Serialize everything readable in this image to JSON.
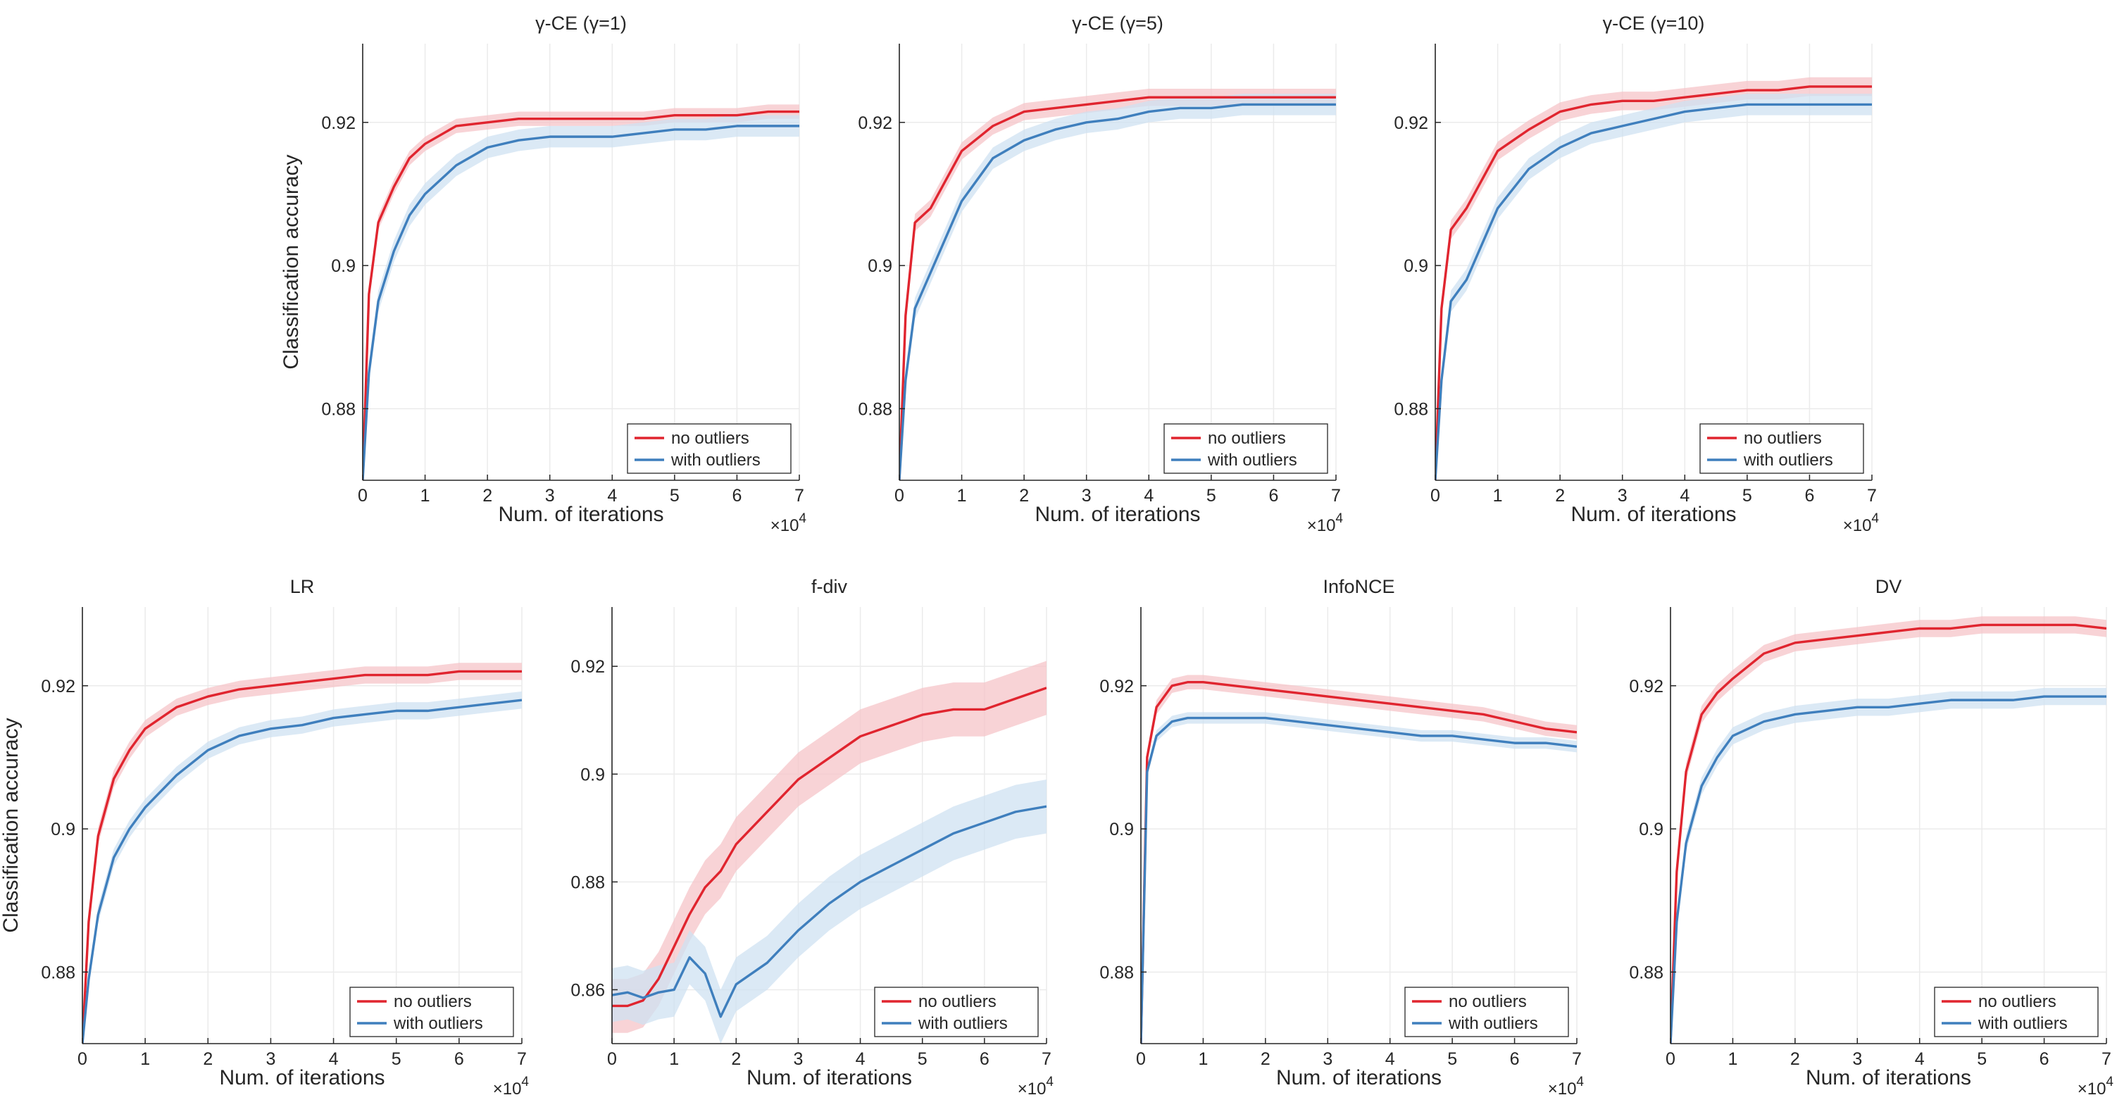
{
  "colors": {
    "no_outliers": "#e0252f",
    "with_outliers": "#3f7fbd",
    "no_outliers_band": "#f6c4c8",
    "with_outliers_band": "#cfe1f1",
    "grid": "#ebebeb",
    "axis": "#262626"
  },
  "common": {
    "xlabel": "Num. of iterations",
    "ylabel": "Classification accuracy",
    "x_exponent_base": "×10",
    "x_exponent_power": "4",
    "xlim": [
      0,
      7
    ],
    "ylim": [
      0.87,
      0.931
    ],
    "xticks": [
      "0",
      "1",
      "2",
      "3",
      "4",
      "5",
      "6",
      "7"
    ],
    "yticks": [
      {
        "value": 0.88,
        "label": "0.88"
      },
      {
        "value": 0.9,
        "label": "0.9"
      },
      {
        "value": 0.92,
        "label": "0.92"
      }
    ],
    "legend": [
      "no outliers",
      "with outliers"
    ],
    "legend_position": "bottom-right"
  },
  "chart_data": [
    {
      "type": "line",
      "title": "γ-CE (γ=1)",
      "show_ylabel": true,
      "xlim": [
        0,
        7
      ],
      "ylim": [
        0.87,
        0.931
      ],
      "series": [
        {
          "name": "no outliers",
          "x": [
            0,
            0.1,
            0.25,
            0.5,
            0.75,
            1,
            1.5,
            2,
            2.5,
            3,
            3.5,
            4,
            4.5,
            5,
            5.5,
            6,
            6.5,
            7
          ],
          "y": [
            0.87,
            0.896,
            0.906,
            0.911,
            0.915,
            0.917,
            0.9195,
            0.92,
            0.9205,
            0.9205,
            0.9205,
            0.9205,
            0.9205,
            0.921,
            0.921,
            0.921,
            0.9215,
            0.9215
          ],
          "band": 0.001
        },
        {
          "name": "with outliers",
          "x": [
            0,
            0.1,
            0.25,
            0.5,
            0.75,
            1,
            1.5,
            2,
            2.5,
            3,
            3.5,
            4,
            4.5,
            5,
            5.5,
            6,
            6.5,
            7
          ],
          "y": [
            0.87,
            0.885,
            0.895,
            0.902,
            0.907,
            0.91,
            0.914,
            0.9165,
            0.9175,
            0.918,
            0.918,
            0.918,
            0.9185,
            0.919,
            0.919,
            0.9195,
            0.9195,
            0.9195
          ],
          "band": 0.0015
        }
      ]
    },
    {
      "type": "line",
      "title": "γ-CE (γ=5)",
      "show_ylabel": false,
      "xlim": [
        0,
        7
      ],
      "ylim": [
        0.87,
        0.931
      ],
      "series": [
        {
          "name": "no outliers",
          "x": [
            0,
            0.1,
            0.25,
            0.5,
            0.75,
            1,
            1.5,
            2,
            2.5,
            3,
            3.5,
            4,
            4.5,
            5,
            5.5,
            6,
            6.5,
            7
          ],
          "y": [
            0.87,
            0.893,
            0.906,
            0.908,
            0.912,
            0.916,
            0.9195,
            0.9215,
            0.922,
            0.9225,
            0.923,
            0.9235,
            0.9235,
            0.9235,
            0.9235,
            0.9235,
            0.9235,
            0.9235
          ],
          "band": 0.0012
        },
        {
          "name": "with outliers",
          "x": [
            0,
            0.1,
            0.25,
            0.5,
            0.75,
            1,
            1.5,
            2,
            2.5,
            3,
            3.5,
            4,
            4.5,
            5,
            5.5,
            6,
            6.5,
            7
          ],
          "y": [
            0.87,
            0.884,
            0.894,
            0.899,
            0.904,
            0.909,
            0.915,
            0.9175,
            0.919,
            0.92,
            0.9205,
            0.9215,
            0.922,
            0.922,
            0.9225,
            0.9225,
            0.9225,
            0.9225
          ],
          "band": 0.0015
        }
      ]
    },
    {
      "type": "line",
      "title": "γ-CE (γ=10)",
      "show_ylabel": false,
      "xlim": [
        0,
        7
      ],
      "ylim": [
        0.87,
        0.931
      ],
      "series": [
        {
          "name": "no outliers",
          "x": [
            0,
            0.1,
            0.25,
            0.5,
            0.75,
            1,
            1.5,
            2,
            2.5,
            3,
            3.5,
            4,
            4.5,
            5,
            5.5,
            6,
            6.5,
            7
          ],
          "y": [
            0.87,
            0.894,
            0.905,
            0.908,
            0.912,
            0.916,
            0.919,
            0.9215,
            0.9225,
            0.923,
            0.923,
            0.9235,
            0.924,
            0.9245,
            0.9245,
            0.925,
            0.925,
            0.925
          ],
          "band": 0.0013
        },
        {
          "name": "with outliers",
          "x": [
            0,
            0.1,
            0.25,
            0.5,
            0.75,
            1,
            1.5,
            2,
            2.5,
            3,
            3.5,
            4,
            4.5,
            5,
            5.5,
            6,
            6.5,
            7
          ],
          "y": [
            0.87,
            0.884,
            0.895,
            0.898,
            0.903,
            0.908,
            0.9135,
            0.9165,
            0.9185,
            0.9195,
            0.9205,
            0.9215,
            0.922,
            0.9225,
            0.9225,
            0.9225,
            0.9225,
            0.9225
          ],
          "band": 0.0015
        }
      ]
    },
    {
      "type": "line",
      "title": "LR",
      "show_ylabel": true,
      "xlim": [
        0,
        7
      ],
      "ylim": [
        0.87,
        0.931
      ],
      "series": [
        {
          "name": "no outliers",
          "x": [
            0,
            0.1,
            0.25,
            0.5,
            0.75,
            1,
            1.5,
            2,
            2.5,
            3,
            3.5,
            4,
            4.5,
            5,
            5.5,
            6,
            6.5,
            7
          ],
          "y": [
            0.87,
            0.887,
            0.899,
            0.907,
            0.911,
            0.914,
            0.917,
            0.9185,
            0.9195,
            0.92,
            0.9205,
            0.921,
            0.9215,
            0.9215,
            0.9215,
            0.922,
            0.922,
            0.922
          ],
          "band": 0.0012
        },
        {
          "name": "with outliers",
          "x": [
            0,
            0.1,
            0.25,
            0.5,
            0.75,
            1,
            1.5,
            2,
            2.5,
            3,
            3.5,
            4,
            4.5,
            5,
            5.5,
            6,
            6.5,
            7
          ],
          "y": [
            0.87,
            0.879,
            0.888,
            0.896,
            0.9,
            0.903,
            0.9075,
            0.911,
            0.913,
            0.914,
            0.9145,
            0.9155,
            0.916,
            0.9165,
            0.9165,
            0.917,
            0.9175,
            0.918
          ],
          "band": 0.0012
        }
      ]
    },
    {
      "type": "line",
      "title": "f-div",
      "show_ylabel": false,
      "xlim": [
        0,
        7
      ],
      "ylim": [
        0.85,
        0.931
      ],
      "series": [
        {
          "name": "no outliers",
          "x": [
            0,
            0.25,
            0.5,
            0.75,
            1,
            1.25,
            1.5,
            1.75,
            2,
            2.5,
            3,
            3.5,
            4,
            4.5,
            5,
            5.5,
            6,
            6.5,
            7
          ],
          "y": [
            0.857,
            0.857,
            0.858,
            0.862,
            0.868,
            0.874,
            0.879,
            0.882,
            0.887,
            0.893,
            0.899,
            0.903,
            0.907,
            0.909,
            0.911,
            0.912,
            0.912,
            0.914,
            0.916
          ],
          "band": 0.005
        },
        {
          "name": "with outliers",
          "x": [
            0,
            0.25,
            0.5,
            0.75,
            1,
            1.25,
            1.5,
            1.75,
            2,
            2.5,
            3,
            3.5,
            4,
            4.5,
            5,
            5.5,
            6,
            6.5,
            7
          ],
          "y": [
            0.859,
            0.8595,
            0.8585,
            0.8595,
            0.86,
            0.866,
            0.863,
            0.855,
            0.861,
            0.865,
            0.871,
            0.876,
            0.88,
            0.883,
            0.886,
            0.889,
            0.891,
            0.893,
            0.894
          ],
          "band": 0.005
        }
      ]
    },
    {
      "type": "line",
      "title": "InfoNCE",
      "show_ylabel": false,
      "xlim": [
        0,
        7
      ],
      "ylim": [
        0.87,
        0.931
      ],
      "series": [
        {
          "name": "no outliers",
          "x": [
            0,
            0.1,
            0.25,
            0.5,
            0.75,
            1,
            1.5,
            2,
            2.5,
            3,
            3.5,
            4,
            4.5,
            5,
            5.5,
            6,
            6.5,
            7
          ],
          "y": [
            0.87,
            0.91,
            0.917,
            0.92,
            0.9205,
            0.9205,
            0.92,
            0.9195,
            0.919,
            0.9185,
            0.918,
            0.9175,
            0.917,
            0.9165,
            0.916,
            0.915,
            0.914,
            0.9135
          ],
          "band": 0.001
        },
        {
          "name": "with outliers",
          "x": [
            0,
            0.1,
            0.25,
            0.5,
            0.75,
            1,
            1.5,
            2,
            2.5,
            3,
            3.5,
            4,
            4.5,
            5,
            5.5,
            6,
            6.5,
            7
          ],
          "y": [
            0.87,
            0.908,
            0.913,
            0.915,
            0.9155,
            0.9155,
            0.9155,
            0.9155,
            0.915,
            0.9145,
            0.914,
            0.9135,
            0.913,
            0.913,
            0.9125,
            0.912,
            0.912,
            0.9115
          ],
          "band": 0.0008
        }
      ]
    },
    {
      "type": "line",
      "title": "DV",
      "show_ylabel": false,
      "xlim": [
        0,
        7
      ],
      "ylim": [
        0.87,
        0.931
      ],
      "series": [
        {
          "name": "no outliers",
          "x": [
            0,
            0.1,
            0.25,
            0.5,
            0.75,
            1,
            1.5,
            2,
            2.5,
            3,
            3.5,
            4,
            4.5,
            5,
            5.5,
            6,
            6.5,
            7
          ],
          "y": [
            0.87,
            0.894,
            0.908,
            0.916,
            0.919,
            0.921,
            0.9245,
            0.926,
            0.9265,
            0.927,
            0.9275,
            0.928,
            0.928,
            0.9285,
            0.9285,
            0.9285,
            0.9285,
            0.928
          ],
          "band": 0.0012
        },
        {
          "name": "with outliers",
          "x": [
            0,
            0.1,
            0.25,
            0.5,
            0.75,
            1,
            1.5,
            2,
            2.5,
            3,
            3.5,
            4,
            4.5,
            5,
            5.5,
            6,
            6.5,
            7
          ],
          "y": [
            0.87,
            0.887,
            0.898,
            0.906,
            0.91,
            0.913,
            0.915,
            0.916,
            0.9165,
            0.917,
            0.917,
            0.9175,
            0.918,
            0.918,
            0.918,
            0.9185,
            0.9185,
            0.9185
          ],
          "band": 0.0012
        }
      ]
    }
  ]
}
